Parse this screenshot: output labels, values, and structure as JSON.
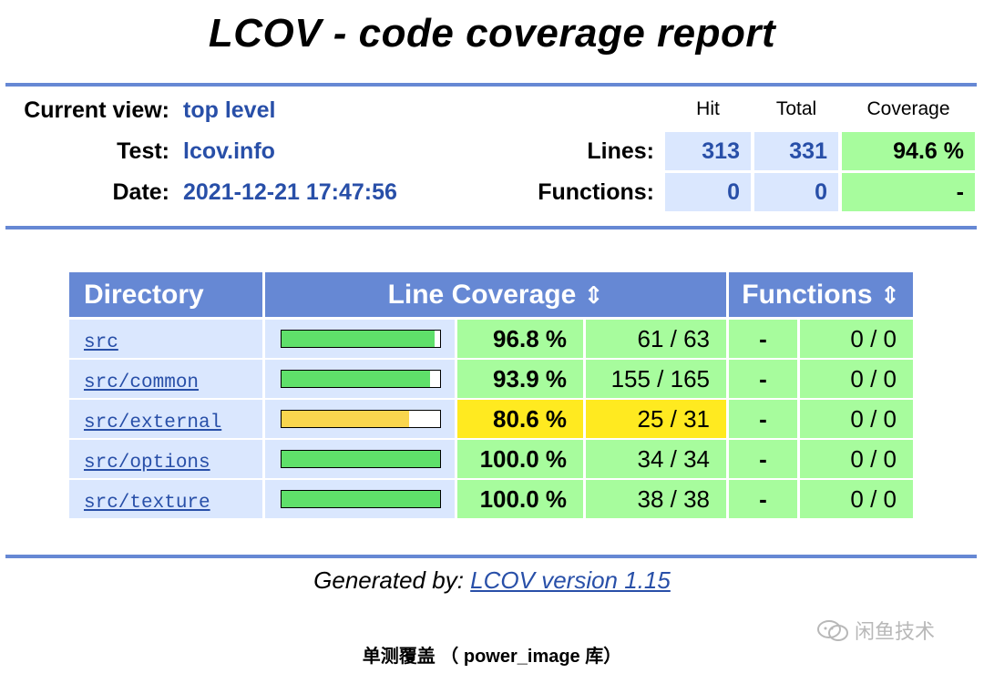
{
  "title": "LCOV - code coverage report",
  "header": {
    "current_view_label": "Current view:",
    "current_view_value": "top level",
    "test_label": "Test:",
    "test_value": "lcov.info",
    "date_label": "Date:",
    "date_value": "2021-12-21 17:47:56"
  },
  "summary": {
    "col_hit": "Hit",
    "col_total": "Total",
    "col_coverage": "Coverage",
    "lines_label": "Lines:",
    "lines_hit": "313",
    "lines_total": "331",
    "lines_coverage": "94.6 %",
    "functions_label": "Functions:",
    "functions_hit": "0",
    "functions_total": "0",
    "functions_coverage": "-"
  },
  "table": {
    "col_directory": "Directory",
    "col_line_coverage": "Line Coverage",
    "col_functions": "Functions",
    "sort_glyph": "⇕",
    "rows": [
      {
        "dir": "src",
        "bar_fraction": 0.968,
        "pct": "96.8 %",
        "frac": "61 / 63",
        "fn": "-",
        "fn_frac": "0 / 0",
        "level": "hi"
      },
      {
        "dir": "src/common",
        "bar_fraction": 0.939,
        "pct": "93.9 %",
        "frac": "155 / 165",
        "fn": "-",
        "fn_frac": "0 / 0",
        "level": "hi"
      },
      {
        "dir": "src/external",
        "bar_fraction": 0.806,
        "pct": "80.6 %",
        "frac": "25 / 31",
        "fn": "-",
        "fn_frac": "0 / 0",
        "level": "med"
      },
      {
        "dir": "src/options",
        "bar_fraction": 1.0,
        "pct": "100.0 %",
        "frac": "34 / 34",
        "fn": "-",
        "fn_frac": "0 / 0",
        "level": "hi"
      },
      {
        "dir": "src/texture",
        "bar_fraction": 1.0,
        "pct": "100.0 %",
        "frac": "38 / 38",
        "fn": "-",
        "fn_frac": "0 / 0",
        "level": "hi"
      }
    ]
  },
  "footer": {
    "generated_by": "Generated by:",
    "version_link": "LCOV version 1.15"
  },
  "caption": "单测覆盖 （ power_image 库）",
  "watermark": "闲鱼技术",
  "colors": {
    "accent": "#6688d4",
    "link": "#284fa8",
    "cell_blue": "#dae7fe",
    "hi_bg": "#a7fc9d",
    "med_bg": "#ffea20",
    "hi_bar": "#5fe06a",
    "med_bar": "#f9d64e"
  }
}
